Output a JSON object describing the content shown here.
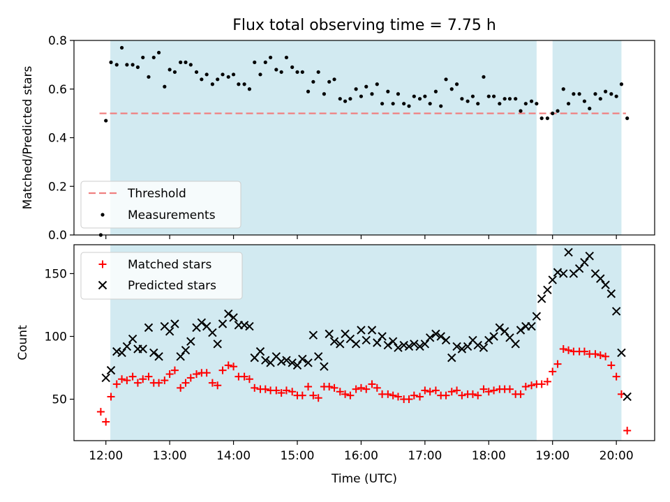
{
  "figure_title": "Flux total observing time = 7.75 h",
  "colors": {
    "shade": "#add8e6",
    "threshold": "#f08080",
    "measurements": "#000000",
    "matched": "#ff0000",
    "predicted": "#000000"
  },
  "chart_data": [
    {
      "type": "scatter",
      "ylabel": "Matched/Predicted stars",
      "xlim": [
        11.5,
        20.6
      ],
      "ylim": [
        0,
        0.8
      ],
      "yticks": [
        0,
        0.2,
        0.4,
        0.6,
        0.8
      ],
      "ytick_labels": [
        "0.0",
        "0.2",
        "0.4",
        "0.6",
        "0.8"
      ],
      "shaded_intervals": [
        [
          12.07,
          18.75
        ],
        [
          19.0,
          20.08
        ]
      ],
      "threshold": {
        "name": "Threshold",
        "value": 0.5,
        "x_range": [
          11.9,
          20.15
        ]
      },
      "legend": {
        "placement": "lower-left",
        "entries": [
          "Threshold",
          "Measurements"
        ]
      },
      "series": [
        {
          "name": "Measurements",
          "x": [
            11.92,
            12.0,
            12.08,
            12.17,
            12.25,
            12.33,
            12.42,
            12.5,
            12.58,
            12.67,
            12.75,
            12.83,
            12.92,
            13.0,
            13.08,
            13.17,
            13.25,
            13.33,
            13.42,
            13.5,
            13.58,
            13.67,
            13.75,
            13.83,
            13.92,
            14.0,
            14.08,
            14.17,
            14.25,
            14.33,
            14.42,
            14.5,
            14.58,
            14.67,
            14.75,
            14.83,
            14.92,
            15.0,
            15.08,
            15.17,
            15.25,
            15.33,
            15.42,
            15.5,
            15.58,
            15.67,
            15.75,
            15.83,
            15.92,
            16.0,
            16.08,
            16.17,
            16.25,
            16.33,
            16.42,
            16.5,
            16.58,
            16.67,
            16.75,
            16.83,
            16.92,
            17.0,
            17.08,
            17.17,
            17.25,
            17.33,
            17.42,
            17.5,
            17.58,
            17.67,
            17.75,
            17.83,
            17.92,
            18.0,
            18.08,
            18.17,
            18.25,
            18.33,
            18.42,
            18.5,
            18.58,
            18.67,
            18.75,
            18.83,
            18.92,
            19.0,
            19.08,
            19.17,
            19.25,
            19.33,
            19.42,
            19.5,
            19.58,
            19.67,
            19.75,
            19.83,
            19.92,
            20.0,
            20.08,
            20.17
          ],
          "y": [
            0.0,
            0.47,
            0.71,
            0.7,
            0.77,
            0.7,
            0.7,
            0.69,
            0.73,
            0.65,
            0.73,
            0.75,
            0.61,
            0.68,
            0.67,
            0.71,
            0.71,
            0.7,
            0.67,
            0.64,
            0.66,
            0.62,
            0.64,
            0.66,
            0.65,
            0.66,
            0.62,
            0.62,
            0.6,
            0.71,
            0.66,
            0.71,
            0.73,
            0.68,
            0.67,
            0.73,
            0.69,
            0.67,
            0.67,
            0.59,
            0.63,
            0.67,
            0.58,
            0.63,
            0.64,
            0.56,
            0.55,
            0.56,
            0.6,
            0.57,
            0.61,
            0.58,
            0.62,
            0.54,
            0.59,
            0.54,
            0.58,
            0.54,
            0.53,
            0.57,
            0.56,
            0.57,
            0.54,
            0.59,
            0.53,
            0.64,
            0.6,
            0.62,
            0.56,
            0.55,
            0.57,
            0.54,
            0.65,
            0.57,
            0.57,
            0.54,
            0.56,
            0.56,
            0.56,
            0.51,
            0.54,
            0.55,
            0.54,
            0.48,
            0.48,
            0.5,
            0.51,
            0.6,
            0.54,
            0.58,
            0.58,
            0.55,
            0.52,
            0.58,
            0.56,
            0.59,
            0.58,
            0.57,
            0.62,
            0.48
          ]
        }
      ]
    },
    {
      "type": "scatter",
      "xlabel": "Time (UTC)",
      "ylabel": "Count",
      "xlim": [
        11.5,
        20.6
      ],
      "ylim": [
        17,
        173
      ],
      "xticks": [
        12,
        13,
        14,
        15,
        16,
        17,
        18,
        19,
        20
      ],
      "xtick_labels": [
        "12:00",
        "13:00",
        "14:00",
        "15:00",
        "16:00",
        "17:00",
        "18:00",
        "19:00",
        "20:00"
      ],
      "yticks": [
        50,
        100,
        150
      ],
      "ytick_labels": [
        "50",
        "100",
        "150"
      ],
      "shaded_intervals": [
        [
          12.07,
          18.75
        ],
        [
          19.0,
          20.08
        ]
      ],
      "legend": {
        "placement": "upper-left",
        "entries": [
          "Matched stars",
          "Predicted stars"
        ]
      },
      "series": [
        {
          "name": "Matched stars",
          "marker": "plus",
          "x": [
            11.92,
            12.0,
            12.08,
            12.17,
            12.25,
            12.33,
            12.42,
            12.5,
            12.58,
            12.67,
            12.75,
            12.83,
            12.92,
            13.0,
            13.08,
            13.17,
            13.25,
            13.33,
            13.42,
            13.5,
            13.58,
            13.67,
            13.75,
            13.83,
            13.92,
            14.0,
            14.08,
            14.17,
            14.25,
            14.33,
            14.42,
            14.5,
            14.58,
            14.67,
            14.75,
            14.83,
            14.92,
            15.0,
            15.08,
            15.17,
            15.25,
            15.33,
            15.42,
            15.5,
            15.58,
            15.67,
            15.75,
            15.83,
            15.92,
            16.0,
            16.08,
            16.17,
            16.25,
            16.33,
            16.42,
            16.5,
            16.58,
            16.67,
            16.75,
            16.83,
            16.92,
            17.0,
            17.08,
            17.17,
            17.25,
            17.33,
            17.42,
            17.5,
            17.58,
            17.67,
            17.75,
            17.83,
            17.92,
            18.0,
            18.08,
            18.17,
            18.25,
            18.33,
            18.42,
            18.5,
            18.58,
            18.67,
            18.75,
            18.83,
            18.92,
            19.0,
            19.08,
            19.17,
            19.25,
            19.33,
            19.42,
            19.5,
            19.58,
            19.67,
            19.75,
            19.83,
            19.92,
            20.0,
            20.08,
            20.17
          ],
          "y": [
            40,
            32,
            52,
            62,
            66,
            65,
            68,
            63,
            66,
            68,
            63,
            63,
            65,
            70,
            73,
            59,
            63,
            67,
            70,
            71,
            71,
            63,
            61,
            73,
            77,
            76,
            68,
            68,
            66,
            59,
            58,
            58,
            57,
            57,
            55,
            57,
            56,
            53,
            53,
            60,
            53,
            51,
            60,
            60,
            59,
            56,
            54,
            53,
            58,
            59,
            58,
            62,
            59,
            54,
            54,
            53,
            52,
            50,
            50,
            53,
            52,
            57,
            56,
            57,
            53,
            53,
            56,
            57,
            53,
            54,
            54,
            53,
            58,
            56,
            57,
            58,
            58,
            58,
            54,
            54,
            60,
            61,
            62,
            62,
            64,
            72,
            78,
            90,
            89,
            88,
            88,
            88,
            86,
            86,
            85,
            84,
            77,
            68,
            54,
            25
          ]
        },
        {
          "name": "Predicted stars",
          "marker": "x",
          "x": [
            12.0,
            12.08,
            12.17,
            12.25,
            12.33,
            12.42,
            12.5,
            12.58,
            12.67,
            12.75,
            12.83,
            12.92,
            13.0,
            13.08,
            13.17,
            13.25,
            13.33,
            13.42,
            13.5,
            13.58,
            13.67,
            13.75,
            13.83,
            13.92,
            14.0,
            14.08,
            14.17,
            14.25,
            14.33,
            14.42,
            14.5,
            14.58,
            14.67,
            14.75,
            14.83,
            14.92,
            15.0,
            15.08,
            15.17,
            15.25,
            15.33,
            15.42,
            15.5,
            15.58,
            15.67,
            15.75,
            15.83,
            15.92,
            16.0,
            16.08,
            16.17,
            16.25,
            16.33,
            16.42,
            16.5,
            16.58,
            16.67,
            16.75,
            16.83,
            16.92,
            17.0,
            17.08,
            17.17,
            17.25,
            17.33,
            17.42,
            17.5,
            17.58,
            17.67,
            17.75,
            17.83,
            17.92,
            18.0,
            18.08,
            18.17,
            18.25,
            18.33,
            18.42,
            18.5,
            18.58,
            18.67,
            18.75,
            18.83,
            18.92,
            19.0,
            19.08,
            19.17,
            19.25,
            19.33,
            19.42,
            19.5,
            19.58,
            19.67,
            19.75,
            19.83,
            19.92,
            20.0,
            20.08,
            20.17
          ],
          "y": [
            67,
            73,
            88,
            87,
            92,
            98,
            90,
            90,
            107,
            87,
            84,
            108,
            104,
            110,
            84,
            89,
            96,
            107,
            111,
            108,
            103,
            94,
            110,
            118,
            115,
            109,
            109,
            108,
            83,
            88,
            81,
            79,
            84,
            80,
            81,
            79,
            77,
            82,
            79,
            101,
            84,
            76,
            102,
            96,
            94,
            102,
            98,
            94,
            105,
            97,
            105,
            95,
            100,
            93,
            96,
            91,
            93,
            92,
            94,
            92,
            94,
            99,
            102,
            100,
            97,
            83,
            92,
            90,
            92,
            97,
            93,
            91,
            97,
            100,
            107,
            104,
            99,
            94,
            105,
            108,
            108,
            116,
            130,
            137,
            145,
            151,
            150,
            167,
            150,
            154,
            159,
            164,
            150,
            146,
            141,
            134,
            120,
            87,
            52
          ]
        }
      ]
    }
  ]
}
